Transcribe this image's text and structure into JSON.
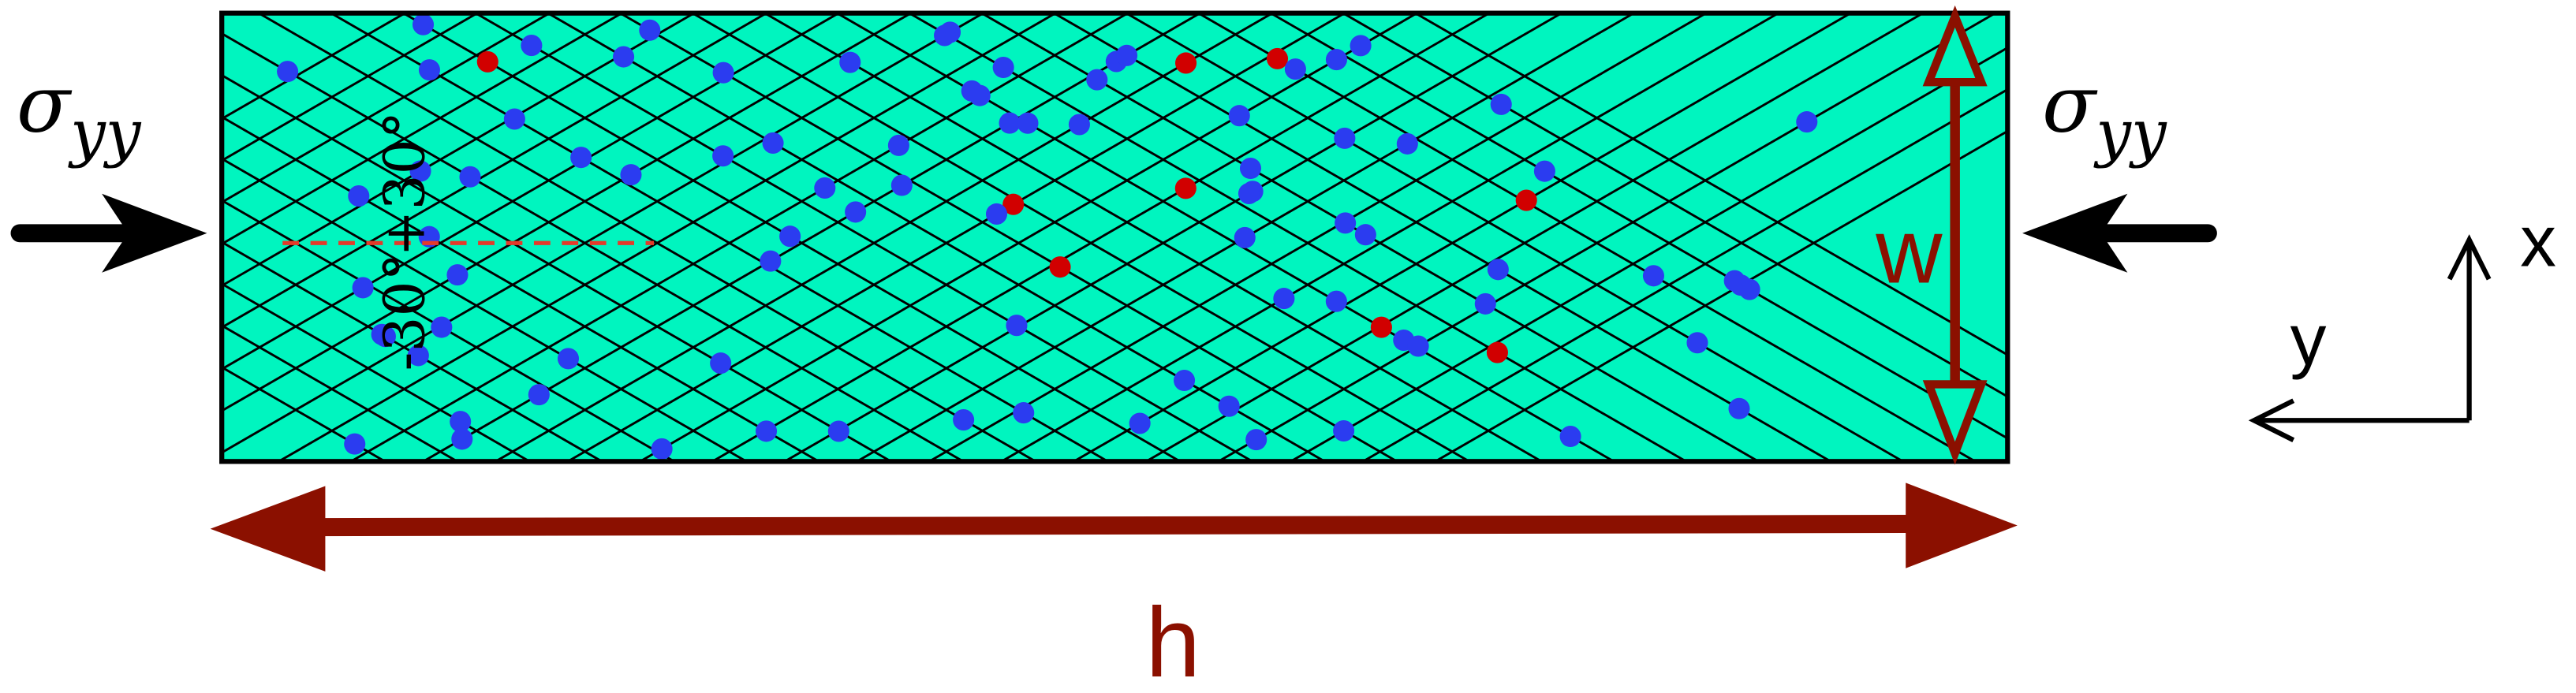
{
  "left_load": {
    "symbol": "σ",
    "subscript": "yy"
  },
  "right_load": {
    "symbol": "σ",
    "subscript": "yy"
  },
  "angles": {
    "upper": "+30°",
    "lower": "-30°"
  },
  "dimensions": {
    "width": "w",
    "height": "h"
  },
  "axes": {
    "vertical": "x",
    "horizontal": "y"
  }
}
